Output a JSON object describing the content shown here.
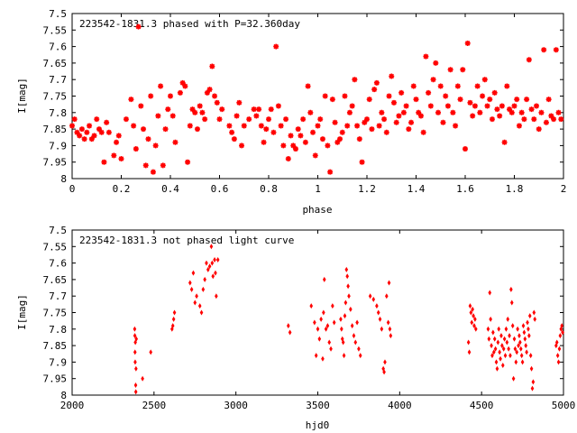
{
  "colors": {
    "marker": "#ff0000",
    "axis": "#000000",
    "background": "#ffffff"
  },
  "chart_data": [
    {
      "type": "scatter",
      "title": "223542-1831.3 phased with P=32.360day",
      "xlabel": "phase",
      "ylabel": "I[mag]",
      "xlim": [
        0,
        2
      ],
      "ylim": [
        7.5,
        8
      ],
      "y_inverted": true,
      "grid": false,
      "marker": "star",
      "x_ticks": [
        "0",
        "0.2",
        "0.4",
        "0.6",
        "0.8",
        "1",
        "1.2",
        "1.4",
        "1.6",
        "1.8",
        "2"
      ],
      "y_ticks": [
        "7.5",
        "7.55",
        "7.6",
        "7.65",
        "7.7",
        "7.75",
        "7.8",
        "7.85",
        "7.9",
        "7.95",
        "8"
      ],
      "points": [
        [
          0.0,
          7.84
        ],
        [
          0.01,
          7.82
        ],
        [
          0.02,
          7.86
        ],
        [
          0.03,
          7.87
        ],
        [
          0.04,
          7.85
        ],
        [
          0.05,
          7.88
        ],
        [
          0.06,
          7.86
        ],
        [
          0.07,
          7.84
        ],
        [
          0.08,
          7.88
        ],
        [
          0.09,
          7.87
        ],
        [
          0.1,
          7.82
        ],
        [
          0.11,
          7.85
        ],
        [
          0.12,
          7.86
        ],
        [
          0.13,
          7.95
        ],
        [
          0.14,
          7.83
        ],
        [
          0.15,
          7.86
        ],
        [
          0.17,
          7.93
        ],
        [
          0.18,
          7.89
        ],
        [
          0.19,
          7.87
        ],
        [
          0.2,
          7.94
        ],
        [
          0.22,
          7.82
        ],
        [
          0.24,
          7.76
        ],
        [
          0.25,
          7.84
        ],
        [
          0.26,
          7.91
        ],
        [
          0.27,
          7.54
        ],
        [
          0.28,
          7.78
        ],
        [
          0.29,
          7.85
        ],
        [
          0.3,
          7.96
        ],
        [
          0.31,
          7.88
        ],
        [
          0.32,
          7.75
        ],
        [
          0.33,
          7.98
        ],
        [
          0.34,
          7.9
        ],
        [
          0.35,
          7.81
        ],
        [
          0.36,
          7.72
        ],
        [
          0.37,
          7.96
        ],
        [
          0.38,
          7.85
        ],
        [
          0.39,
          7.79
        ],
        [
          0.4,
          7.75
        ],
        [
          0.41,
          7.81
        ],
        [
          0.42,
          7.89
        ],
        [
          0.44,
          7.74
        ],
        [
          0.45,
          7.71
        ],
        [
          0.46,
          7.72
        ],
        [
          0.47,
          7.95
        ],
        [
          0.48,
          7.84
        ],
        [
          0.49,
          7.79
        ],
        [
          0.5,
          7.8
        ],
        [
          0.51,
          7.85
        ],
        [
          0.52,
          7.78
        ],
        [
          0.53,
          7.8
        ],
        [
          0.54,
          7.82
        ],
        [
          0.55,
          7.74
        ],
        [
          0.56,
          7.73
        ],
        [
          0.57,
          7.66
        ],
        [
          0.58,
          7.75
        ],
        [
          0.59,
          7.77
        ],
        [
          0.6,
          7.82
        ],
        [
          0.61,
          7.79
        ],
        [
          0.64,
          7.84
        ],
        [
          0.65,
          7.86
        ],
        [
          0.66,
          7.88
        ],
        [
          0.67,
          7.81
        ],
        [
          0.68,
          7.77
        ],
        [
          0.69,
          7.9
        ],
        [
          0.7,
          7.84
        ],
        [
          0.72,
          7.82
        ],
        [
          0.74,
          7.79
        ],
        [
          0.75,
          7.81
        ],
        [
          0.76,
          7.79
        ],
        [
          0.77,
          7.84
        ],
        [
          0.78,
          7.89
        ],
        [
          0.79,
          7.85
        ],
        [
          0.8,
          7.82
        ],
        [
          0.81,
          7.79
        ],
        [
          0.82,
          7.86
        ],
        [
          0.83,
          7.6
        ],
        [
          0.84,
          7.78
        ],
        [
          0.85,
          7.84
        ],
        [
          0.86,
          7.9
        ],
        [
          0.87,
          7.82
        ],
        [
          0.88,
          7.94
        ],
        [
          0.89,
          7.87
        ],
        [
          0.9,
          7.9
        ],
        [
          0.91,
          7.91
        ],
        [
          0.92,
          7.85
        ],
        [
          0.93,
          7.87
        ],
        [
          0.94,
          7.82
        ],
        [
          0.95,
          7.89
        ],
        [
          0.96,
          7.72
        ],
        [
          0.97,
          7.8
        ],
        [
          0.98,
          7.86
        ],
        [
          0.99,
          7.93
        ],
        [
          1.0,
          7.84
        ],
        [
          1.01,
          7.82
        ],
        [
          1.02,
          7.88
        ],
        [
          1.03,
          7.75
        ],
        [
          1.04,
          7.9
        ],
        [
          1.05,
          7.98
        ],
        [
          1.06,
          7.76
        ],
        [
          1.07,
          7.83
        ],
        [
          1.08,
          7.89
        ],
        [
          1.09,
          7.88
        ],
        [
          1.1,
          7.86
        ],
        [
          1.11,
          7.75
        ],
        [
          1.12,
          7.84
        ],
        [
          1.13,
          7.8
        ],
        [
          1.14,
          7.78
        ],
        [
          1.15,
          7.7
        ],
        [
          1.16,
          7.84
        ],
        [
          1.17,
          7.88
        ],
        [
          1.18,
          7.95
        ],
        [
          1.19,
          7.83
        ],
        [
          1.2,
          7.82
        ],
        [
          1.21,
          7.76
        ],
        [
          1.22,
          7.85
        ],
        [
          1.23,
          7.73
        ],
        [
          1.24,
          7.71
        ],
        [
          1.25,
          7.84
        ],
        [
          1.26,
          7.8
        ],
        [
          1.27,
          7.82
        ],
        [
          1.28,
          7.86
        ],
        [
          1.29,
          7.75
        ],
        [
          1.3,
          7.69
        ],
        [
          1.31,
          7.77
        ],
        [
          1.32,
          7.83
        ],
        [
          1.33,
          7.81
        ],
        [
          1.34,
          7.74
        ],
        [
          1.35,
          7.8
        ],
        [
          1.36,
          7.78
        ],
        [
          1.37,
          7.85
        ],
        [
          1.38,
          7.83
        ],
        [
          1.39,
          7.72
        ],
        [
          1.4,
          7.76
        ],
        [
          1.41,
          7.8
        ],
        [
          1.42,
          7.81
        ],
        [
          1.43,
          7.86
        ],
        [
          1.44,
          7.63
        ],
        [
          1.45,
          7.74
        ],
        [
          1.46,
          7.78
        ],
        [
          1.47,
          7.7
        ],
        [
          1.48,
          7.65
        ],
        [
          1.49,
          7.8
        ],
        [
          1.5,
          7.72
        ],
        [
          1.51,
          7.83
        ],
        [
          1.52,
          7.75
        ],
        [
          1.53,
          7.78
        ],
        [
          1.54,
          7.67
        ],
        [
          1.55,
          7.8
        ],
        [
          1.56,
          7.84
        ],
        [
          1.57,
          7.72
        ],
        [
          1.58,
          7.76
        ],
        [
          1.59,
          7.67
        ],
        [
          1.6,
          7.91
        ],
        [
          1.61,
          7.59
        ],
        [
          1.62,
          7.77
        ],
        [
          1.63,
          7.81
        ],
        [
          1.64,
          7.78
        ],
        [
          1.65,
          7.72
        ],
        [
          1.66,
          7.8
        ],
        [
          1.67,
          7.75
        ],
        [
          1.68,
          7.7
        ],
        [
          1.69,
          7.78
        ],
        [
          1.7,
          7.76
        ],
        [
          1.71,
          7.82
        ],
        [
          1.72,
          7.74
        ],
        [
          1.73,
          7.79
        ],
        [
          1.74,
          7.81
        ],
        [
          1.75,
          7.78
        ],
        [
          1.76,
          7.89
        ],
        [
          1.77,
          7.72
        ],
        [
          1.78,
          7.79
        ],
        [
          1.79,
          7.8
        ],
        [
          1.8,
          7.78
        ],
        [
          1.81,
          7.76
        ],
        [
          1.82,
          7.84
        ],
        [
          1.83,
          7.8
        ],
        [
          1.84,
          7.82
        ],
        [
          1.85,
          7.76
        ],
        [
          1.86,
          7.64
        ],
        [
          1.87,
          7.79
        ],
        [
          1.88,
          7.82
        ],
        [
          1.89,
          7.78
        ],
        [
          1.9,
          7.85
        ],
        [
          1.91,
          7.8
        ],
        [
          1.92,
          7.61
        ],
        [
          1.93,
          7.83
        ],
        [
          1.94,
          7.76
        ],
        [
          1.95,
          7.81
        ],
        [
          1.96,
          7.82
        ],
        [
          1.97,
          7.61
        ],
        [
          1.98,
          7.8
        ],
        [
          1.99,
          7.82
        ]
      ]
    },
    {
      "type": "scatter",
      "title": "223542-1831.3 not phased light curve",
      "xlabel": "hjd0",
      "ylabel": "I[mag]",
      "xlim": [
        2000,
        5000
      ],
      "ylim": [
        7.5,
        8
      ],
      "y_inverted": true,
      "grid": false,
      "marker": "diamond",
      "x_ticks": [
        "2000",
        "2500",
        "3000",
        "3500",
        "4000",
        "4500",
        "5000"
      ],
      "y_ticks": [
        "7.5",
        "7.55",
        "7.6",
        "7.65",
        "7.7",
        "7.75",
        "7.8",
        "7.85",
        "7.9",
        "7.95",
        "8"
      ],
      "points": [
        [
          2382,
          7.8
        ],
        [
          2383,
          7.82
        ],
        [
          2384,
          7.87
        ],
        [
          2385,
          7.9
        ],
        [
          2386,
          7.84
        ],
        [
          2388,
          7.97
        ],
        [
          2389,
          7.99
        ],
        [
          2390,
          7.92
        ],
        [
          2392,
          7.83
        ],
        [
          2430,
          7.95
        ],
        [
          2480,
          7.87
        ],
        [
          2610,
          7.8
        ],
        [
          2615,
          7.79
        ],
        [
          2620,
          7.77
        ],
        [
          2625,
          7.75
        ],
        [
          2720,
          7.66
        ],
        [
          2730,
          7.68
        ],
        [
          2740,
          7.63
        ],
        [
          2750,
          7.72
        ],
        [
          2760,
          7.7
        ],
        [
          2780,
          7.73
        ],
        [
          2790,
          7.75
        ],
        [
          2800,
          7.68
        ],
        [
          2810,
          7.65
        ],
        [
          2820,
          7.6
        ],
        [
          2830,
          7.62
        ],
        [
          2840,
          7.61
        ],
        [
          2850,
          7.55
        ],
        [
          2855,
          7.6
        ],
        [
          2860,
          7.64
        ],
        [
          2870,
          7.59
        ],
        [
          2875,
          7.63
        ],
        [
          2880,
          7.7
        ],
        [
          2890,
          7.59
        ],
        [
          3320,
          7.79
        ],
        [
          3330,
          7.81
        ],
        [
          3460,
          7.73
        ],
        [
          3480,
          7.78
        ],
        [
          3490,
          7.88
        ],
        [
          3500,
          7.8
        ],
        [
          3510,
          7.83
        ],
        [
          3520,
          7.77
        ],
        [
          3530,
          7.89
        ],
        [
          3535,
          7.75
        ],
        [
          3540,
          7.65
        ],
        [
          3550,
          7.8
        ],
        [
          3560,
          7.79
        ],
        [
          3570,
          7.84
        ],
        [
          3580,
          7.86
        ],
        [
          3590,
          7.73
        ],
        [
          3600,
          7.78
        ],
        [
          3640,
          7.77
        ],
        [
          3645,
          7.8
        ],
        [
          3650,
          7.83
        ],
        [
          3655,
          7.84
        ],
        [
          3660,
          7.88
        ],
        [
          3665,
          7.76
        ],
        [
          3670,
          7.72
        ],
        [
          3675,
          7.62
        ],
        [
          3680,
          7.64
        ],
        [
          3685,
          7.67
        ],
        [
          3690,
          7.7
        ],
        [
          3700,
          7.74
        ],
        [
          3710,
          7.79
        ],
        [
          3720,
          7.82
        ],
        [
          3730,
          7.84
        ],
        [
          3740,
          7.78
        ],
        [
          3750,
          7.86
        ],
        [
          3760,
          7.88
        ],
        [
          3820,
          7.7
        ],
        [
          3840,
          7.71
        ],
        [
          3860,
          7.73
        ],
        [
          3870,
          7.75
        ],
        [
          3880,
          7.77
        ],
        [
          3890,
          7.8
        ],
        [
          3900,
          7.92
        ],
        [
          3905,
          7.93
        ],
        [
          3910,
          7.9
        ],
        [
          3920,
          7.7
        ],
        [
          3930,
          7.78
        ],
        [
          3935,
          7.66
        ],
        [
          3940,
          7.8
        ],
        [
          3945,
          7.82
        ],
        [
          4420,
          7.84
        ],
        [
          4425,
          7.87
        ],
        [
          4430,
          7.73
        ],
        [
          4435,
          7.75
        ],
        [
          4440,
          7.78
        ],
        [
          4445,
          7.74
        ],
        [
          4450,
          7.76
        ],
        [
          4455,
          7.79
        ],
        [
          4460,
          7.77
        ],
        [
          4465,
          7.8
        ],
        [
          4540,
          7.8
        ],
        [
          4545,
          7.83
        ],
        [
          4550,
          7.69
        ],
        [
          4555,
          7.77
        ],
        [
          4560,
          7.85
        ],
        [
          4565,
          7.88
        ],
        [
          4570,
          7.81
        ],
        [
          4575,
          7.87
        ],
        [
          4580,
          7.83
        ],
        [
          4585,
          7.86
        ],
        [
          4590,
          7.9
        ],
        [
          4595,
          7.92
        ],
        [
          4600,
          7.84
        ],
        [
          4605,
          7.8
        ],
        [
          4610,
          7.87
        ],
        [
          4615,
          7.89
        ],
        [
          4620,
          7.82
        ],
        [
          4625,
          7.85
        ],
        [
          4630,
          7.91
        ],
        [
          4635,
          7.86
        ],
        [
          4640,
          7.83
        ],
        [
          4645,
          7.88
        ],
        [
          4650,
          7.8
        ],
        [
          4655,
          7.84
        ],
        [
          4660,
          7.77
        ],
        [
          4665,
          7.86
        ],
        [
          4670,
          7.82
        ],
        [
          4675,
          7.88
        ],
        [
          4680,
          7.68
        ],
        [
          4685,
          7.72
        ],
        [
          4690,
          7.79
        ],
        [
          4695,
          7.95
        ],
        [
          4700,
          7.83
        ],
        [
          4705,
          7.86
        ],
        [
          4710,
          7.9
        ],
        [
          4715,
          7.87
        ],
        [
          4720,
          7.8
        ],
        [
          4725,
          7.85
        ],
        [
          4730,
          7.82
        ],
        [
          4735,
          7.84
        ],
        [
          4740,
          7.86
        ],
        [
          4745,
          7.88
        ],
        [
          4750,
          7.9
        ],
        [
          4755,
          7.79
        ],
        [
          4760,
          7.81
        ],
        [
          4765,
          7.83
        ],
        [
          4770,
          7.85
        ],
        [
          4775,
          7.87
        ],
        [
          4780,
          7.78
        ],
        [
          4785,
          7.8
        ],
        [
          4790,
          7.82
        ],
        [
          4795,
          7.76
        ],
        [
          4800,
          7.88
        ],
        [
          4805,
          7.92
        ],
        [
          4810,
          7.98
        ],
        [
          4815,
          7.96
        ],
        [
          4820,
          7.75
        ],
        [
          4825,
          7.77
        ],
        [
          4955,
          7.85
        ],
        [
          4960,
          7.84
        ],
        [
          4965,
          7.88
        ],
        [
          4970,
          7.9
        ],
        [
          4975,
          7.86
        ],
        [
          4980,
          7.82
        ],
        [
          4985,
          7.8
        ],
        [
          4990,
          7.79
        ],
        [
          4995,
          7.81
        ]
      ]
    }
  ]
}
